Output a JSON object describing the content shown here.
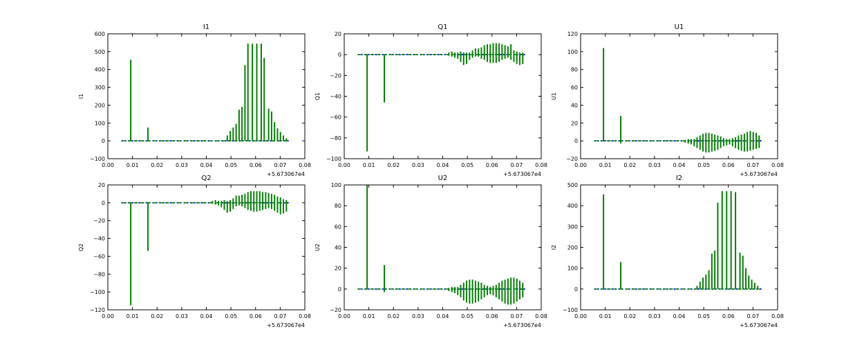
{
  "figure": {
    "background": "#ffffff",
    "spike_color": "#008000",
    "trace_color": "#0000ff"
  },
  "chart_data": [
    {
      "type": "line",
      "title": "I1",
      "ylabel": "I1",
      "xlim": [
        0.0,
        0.08
      ],
      "ylim": [
        -100,
        600
      ],
      "xticks": [
        "0.00",
        "0.01",
        "0.02",
        "0.03",
        "0.04",
        "0.05",
        "0.06",
        "0.07",
        "0.08"
      ],
      "yticks": [
        -100,
        0,
        100,
        200,
        300,
        400,
        500,
        600
      ],
      "x_offset": "+5.673067e4",
      "baseline": {
        "x": [
          0.0055,
          0.0735
        ],
        "y": 0
      },
      "spikes": [
        {
          "x": 0.0093,
          "ymin": 0,
          "ymax": 455
        },
        {
          "x": 0.0163,
          "ymin": 0,
          "ymax": 75
        },
        {
          "x": 0.0485,
          "ymin": 0,
          "ymax": 30
        },
        {
          "x": 0.0497,
          "ymin": 0,
          "ymax": 55
        },
        {
          "x": 0.0509,
          "ymin": 0,
          "ymax": 75
        },
        {
          "x": 0.0521,
          "ymin": 0,
          "ymax": 95
        },
        {
          "x": 0.0533,
          "ymin": 0,
          "ymax": 175
        },
        {
          "x": 0.0545,
          "ymin": 0,
          "ymax": 190
        },
        {
          "x": 0.0557,
          "ymin": 0,
          "ymax": 425
        },
        {
          "x": 0.0569,
          "ymin": 0,
          "ymax": 545
        },
        {
          "x": 0.0587,
          "ymin": 0,
          "ymax": 545
        },
        {
          "x": 0.0605,
          "ymin": 0,
          "ymax": 545
        },
        {
          "x": 0.0623,
          "ymin": 0,
          "ymax": 545
        },
        {
          "x": 0.0635,
          "ymin": 0,
          "ymax": 465
        },
        {
          "x": 0.0653,
          "ymin": 0,
          "ymax": 180
        },
        {
          "x": 0.0665,
          "ymin": 0,
          "ymax": 165
        },
        {
          "x": 0.0677,
          "ymin": 0,
          "ymax": 105
        },
        {
          "x": 0.0689,
          "ymin": 0,
          "ymax": 70
        },
        {
          "x": 0.0701,
          "ymin": 0,
          "ymax": 50
        },
        {
          "x": 0.0713,
          "ymin": 0,
          "ymax": 30
        },
        {
          "x": 0.0725,
          "ymin": 0,
          "ymax": 15
        }
      ]
    },
    {
      "type": "line",
      "title": "Q1",
      "ylabel": "Q1",
      "xlim": [
        0.0,
        0.08
      ],
      "ylim": [
        -100,
        20
      ],
      "xticks": [
        "0.00",
        "0.01",
        "0.02",
        "0.03",
        "0.04",
        "0.05",
        "0.06",
        "0.07",
        "0.08"
      ],
      "yticks": [
        -100,
        -80,
        -60,
        -40,
        -20,
        0,
        20
      ],
      "x_offset": "+5.673067e4",
      "baseline": {
        "x": [
          0.0055,
          0.0735
        ],
        "y": 0
      },
      "spikes": [
        {
          "x": 0.0093,
          "ymin": -93,
          "ymax": 0
        },
        {
          "x": 0.0163,
          "ymin": -46,
          "ymax": 0
        },
        {
          "x": 0.0425,
          "ymin": -1,
          "ymax": 2
        },
        {
          "x": 0.0437,
          "ymin": -2,
          "ymax": 3
        },
        {
          "x": 0.0449,
          "ymin": -3,
          "ymax": 2
        },
        {
          "x": 0.0461,
          "ymin": -4,
          "ymax": 2
        },
        {
          "x": 0.0473,
          "ymin": -7,
          "ymax": 3
        },
        {
          "x": 0.0485,
          "ymin": -10,
          "ymax": 2
        },
        {
          "x": 0.0497,
          "ymin": -9,
          "ymax": 2
        },
        {
          "x": 0.0509,
          "ymin": -5,
          "ymax": 2
        },
        {
          "x": 0.0521,
          "ymin": -3,
          "ymax": 4
        },
        {
          "x": 0.0533,
          "ymin": -2,
          "ymax": 6
        },
        {
          "x": 0.0545,
          "ymin": -2,
          "ymax": 6
        },
        {
          "x": 0.0557,
          "ymin": -4,
          "ymax": 7
        },
        {
          "x": 0.0569,
          "ymin": -5,
          "ymax": 9
        },
        {
          "x": 0.0581,
          "ymin": -7,
          "ymax": 10
        },
        {
          "x": 0.0593,
          "ymin": -8,
          "ymax": 10
        },
        {
          "x": 0.0605,
          "ymin": -8,
          "ymax": 11
        },
        {
          "x": 0.0617,
          "ymin": -8,
          "ymax": 11
        },
        {
          "x": 0.0629,
          "ymin": -7,
          "ymax": 11
        },
        {
          "x": 0.0641,
          "ymin": -5,
          "ymax": 10
        },
        {
          "x": 0.0653,
          "ymin": -4,
          "ymax": 9
        },
        {
          "x": 0.0665,
          "ymin": -3,
          "ymax": 8
        },
        {
          "x": 0.0677,
          "ymin": -5,
          "ymax": 10
        },
        {
          "x": 0.0689,
          "ymin": -7,
          "ymax": 4
        },
        {
          "x": 0.0701,
          "ymin": -9,
          "ymax": 3
        },
        {
          "x": 0.0713,
          "ymin": -10,
          "ymax": 2
        },
        {
          "x": 0.0725,
          "ymin": -9,
          "ymax": 2
        }
      ]
    },
    {
      "type": "line",
      "title": "U1",
      "ylabel": "U1",
      "xlim": [
        0.0,
        0.08
      ],
      "ylim": [
        -20,
        120
      ],
      "xticks": [
        "0.00",
        "0.01",
        "0.02",
        "0.03",
        "0.04",
        "0.05",
        "0.06",
        "0.07",
        "0.08"
      ],
      "yticks": [
        -20,
        0,
        20,
        40,
        60,
        80,
        100,
        120
      ],
      "x_offset": "+5.673067e4",
      "baseline": {
        "x": [
          0.0055,
          0.0735
        ],
        "y": 0
      },
      "spikes": [
        {
          "x": 0.0093,
          "ymin": 0,
          "ymax": 104
        },
        {
          "x": 0.0163,
          "ymin": -3,
          "ymax": 28
        },
        {
          "x": 0.0425,
          "ymin": -2,
          "ymax": 1
        },
        {
          "x": 0.0437,
          "ymin": -3,
          "ymax": 2
        },
        {
          "x": 0.0449,
          "ymin": -4,
          "ymax": 2
        },
        {
          "x": 0.0461,
          "ymin": -6,
          "ymax": 2
        },
        {
          "x": 0.0473,
          "ymin": -8,
          "ymax": 4
        },
        {
          "x": 0.0485,
          "ymin": -10,
          "ymax": 6
        },
        {
          "x": 0.0497,
          "ymin": -12,
          "ymax": 8
        },
        {
          "x": 0.0509,
          "ymin": -13,
          "ymax": 9
        },
        {
          "x": 0.0521,
          "ymin": -13,
          "ymax": 9
        },
        {
          "x": 0.0533,
          "ymin": -12,
          "ymax": 8
        },
        {
          "x": 0.0545,
          "ymin": -11,
          "ymax": 7
        },
        {
          "x": 0.0557,
          "ymin": -10,
          "ymax": 6
        },
        {
          "x": 0.0569,
          "ymin": -8,
          "ymax": 5
        },
        {
          "x": 0.0581,
          "ymin": -6,
          "ymax": 3
        },
        {
          "x": 0.0593,
          "ymin": -5,
          "ymax": 2
        },
        {
          "x": 0.0605,
          "ymin": -4,
          "ymax": 2
        },
        {
          "x": 0.0617,
          "ymin": -6,
          "ymax": 3
        },
        {
          "x": 0.0629,
          "ymin": -8,
          "ymax": 4
        },
        {
          "x": 0.0641,
          "ymin": -10,
          "ymax": 6
        },
        {
          "x": 0.0653,
          "ymin": -11,
          "ymax": 7
        },
        {
          "x": 0.0665,
          "ymin": -12,
          "ymax": 8
        },
        {
          "x": 0.0677,
          "ymin": -12,
          "ymax": 10
        },
        {
          "x": 0.0689,
          "ymin": -11,
          "ymax": 11
        },
        {
          "x": 0.0701,
          "ymin": -10,
          "ymax": 10
        },
        {
          "x": 0.0713,
          "ymin": -9,
          "ymax": 9
        },
        {
          "x": 0.0725,
          "ymin": -8,
          "ymax": 6
        }
      ]
    },
    {
      "type": "line",
      "title": "Q2",
      "ylabel": "Q2",
      "xlim": [
        0.0,
        0.08
      ],
      "ylim": [
        -120,
        20
      ],
      "xticks": [
        "0.00",
        "0.01",
        "0.02",
        "0.03",
        "0.04",
        "0.05",
        "0.06",
        "0.07",
        "0.08"
      ],
      "yticks": [
        -120,
        -100,
        -80,
        -60,
        -40,
        -20,
        0,
        20
      ],
      "x_offset": "+5.673067e4",
      "baseline": {
        "x": [
          0.0055,
          0.0735
        ],
        "y": 0
      },
      "spikes": [
        {
          "x": 0.0093,
          "ymin": -115,
          "ymax": 0
        },
        {
          "x": 0.0163,
          "ymin": -54,
          "ymax": 0
        },
        {
          "x": 0.0425,
          "ymin": -1,
          "ymax": 2
        },
        {
          "x": 0.0437,
          "ymin": -2,
          "ymax": 3
        },
        {
          "x": 0.0449,
          "ymin": -3,
          "ymax": 2
        },
        {
          "x": 0.0461,
          "ymin": -5,
          "ymax": 2
        },
        {
          "x": 0.0473,
          "ymin": -8,
          "ymax": 3
        },
        {
          "x": 0.0485,
          "ymin": -11,
          "ymax": 2
        },
        {
          "x": 0.0497,
          "ymin": -10,
          "ymax": 3
        },
        {
          "x": 0.0509,
          "ymin": -7,
          "ymax": 5
        },
        {
          "x": 0.0521,
          "ymin": -4,
          "ymax": 8
        },
        {
          "x": 0.0533,
          "ymin": -3,
          "ymax": 8
        },
        {
          "x": 0.0545,
          "ymin": -4,
          "ymax": 9
        },
        {
          "x": 0.0557,
          "ymin": -6,
          "ymax": 10
        },
        {
          "x": 0.0569,
          "ymin": -8,
          "ymax": 12
        },
        {
          "x": 0.0581,
          "ymin": -9,
          "ymax": 13
        },
        {
          "x": 0.0593,
          "ymin": -10,
          "ymax": 13
        },
        {
          "x": 0.0605,
          "ymin": -10,
          "ymax": 13
        },
        {
          "x": 0.0617,
          "ymin": -9,
          "ymax": 13
        },
        {
          "x": 0.0629,
          "ymin": -8,
          "ymax": 12
        },
        {
          "x": 0.0641,
          "ymin": -7,
          "ymax": 12
        },
        {
          "x": 0.0653,
          "ymin": -6,
          "ymax": 11
        },
        {
          "x": 0.0665,
          "ymin": -7,
          "ymax": 10
        },
        {
          "x": 0.0677,
          "ymin": -9,
          "ymax": 9
        },
        {
          "x": 0.0689,
          "ymin": -11,
          "ymax": 7
        },
        {
          "x": 0.0701,
          "ymin": -13,
          "ymax": 6
        },
        {
          "x": 0.0713,
          "ymin": -12,
          "ymax": 4
        },
        {
          "x": 0.0725,
          "ymin": -10,
          "ymax": 3
        }
      ]
    },
    {
      "type": "line",
      "title": "U2",
      "ylabel": "U2",
      "xlim": [
        0.0,
        0.08
      ],
      "ylim": [
        -20,
        100
      ],
      "xticks": [
        "0.00",
        "0.01",
        "0.02",
        "0.03",
        "0.04",
        "0.05",
        "0.06",
        "0.07",
        "0.08"
      ],
      "yticks": [
        -20,
        0,
        20,
        40,
        60,
        80,
        100
      ],
      "x_offset": "+5.673067e4",
      "baseline": {
        "x": [
          0.0055,
          0.0735
        ],
        "y": 0
      },
      "spikes": [
        {
          "x": 0.0093,
          "ymin": 0,
          "ymax": 100
        },
        {
          "x": 0.0163,
          "ymin": -3,
          "ymax": 23
        },
        {
          "x": 0.0425,
          "ymin": -2,
          "ymax": 1
        },
        {
          "x": 0.0437,
          "ymin": -3,
          "ymax": 2
        },
        {
          "x": 0.0449,
          "ymin": -4,
          "ymax": 2
        },
        {
          "x": 0.0461,
          "ymin": -6,
          "ymax": 2
        },
        {
          "x": 0.0473,
          "ymin": -8,
          "ymax": 4
        },
        {
          "x": 0.0485,
          "ymin": -11,
          "ymax": 6
        },
        {
          "x": 0.0497,
          "ymin": -13,
          "ymax": 8
        },
        {
          "x": 0.0509,
          "ymin": -14,
          "ymax": 9
        },
        {
          "x": 0.0521,
          "ymin": -14,
          "ymax": 9
        },
        {
          "x": 0.0533,
          "ymin": -13,
          "ymax": 8
        },
        {
          "x": 0.0545,
          "ymin": -12,
          "ymax": 7
        },
        {
          "x": 0.0557,
          "ymin": -10,
          "ymax": 6
        },
        {
          "x": 0.0569,
          "ymin": -8,
          "ymax": 4
        },
        {
          "x": 0.0581,
          "ymin": -6,
          "ymax": 3
        },
        {
          "x": 0.0593,
          "ymin": -5,
          "ymax": 2
        },
        {
          "x": 0.0605,
          "ymin": -6,
          "ymax": 3
        },
        {
          "x": 0.0617,
          "ymin": -8,
          "ymax": 4
        },
        {
          "x": 0.0629,
          "ymin": -10,
          "ymax": 6
        },
        {
          "x": 0.0641,
          "ymin": -12,
          "ymax": 8
        },
        {
          "x": 0.0653,
          "ymin": -14,
          "ymax": 9
        },
        {
          "x": 0.0665,
          "ymin": -15,
          "ymax": 10
        },
        {
          "x": 0.0677,
          "ymin": -15,
          "ymax": 11
        },
        {
          "x": 0.0689,
          "ymin": -14,
          "ymax": 11
        },
        {
          "x": 0.0701,
          "ymin": -12,
          "ymax": 10
        },
        {
          "x": 0.0713,
          "ymin": -10,
          "ymax": 8
        },
        {
          "x": 0.0725,
          "ymin": -8,
          "ymax": 6
        }
      ]
    },
    {
      "type": "line",
      "title": "I2",
      "ylabel": "I2",
      "xlim": [
        0.0,
        0.08
      ],
      "ylim": [
        -100,
        500
      ],
      "xticks": [
        "0.00",
        "0.01",
        "0.02",
        "0.03",
        "0.04",
        "0.05",
        "0.06",
        "0.07",
        "0.08"
      ],
      "yticks": [
        -100,
        0,
        100,
        200,
        300,
        400,
        500
      ],
      "x_offset": "+5.673067e4",
      "baseline": {
        "x": [
          0.0055,
          0.0735
        ],
        "y": 0
      },
      "spikes": [
        {
          "x": 0.0093,
          "ymin": 0,
          "ymax": 455
        },
        {
          "x": 0.0163,
          "ymin": 0,
          "ymax": 130
        },
        {
          "x": 0.0473,
          "ymin": 0,
          "ymax": 15
        },
        {
          "x": 0.0485,
          "ymin": 0,
          "ymax": 35
        },
        {
          "x": 0.0497,
          "ymin": 0,
          "ymax": 55
        },
        {
          "x": 0.0509,
          "ymin": 0,
          "ymax": 70
        },
        {
          "x": 0.0521,
          "ymin": 0,
          "ymax": 90
        },
        {
          "x": 0.0533,
          "ymin": 0,
          "ymax": 170
        },
        {
          "x": 0.0545,
          "ymin": 0,
          "ymax": 185
        },
        {
          "x": 0.0557,
          "ymin": 0,
          "ymax": 415
        },
        {
          "x": 0.0575,
          "ymin": 0,
          "ymax": 470
        },
        {
          "x": 0.0593,
          "ymin": 0,
          "ymax": 470
        },
        {
          "x": 0.0611,
          "ymin": 0,
          "ymax": 470
        },
        {
          "x": 0.0629,
          "ymin": 0,
          "ymax": 465
        },
        {
          "x": 0.0647,
          "ymin": 0,
          "ymax": 175
        },
        {
          "x": 0.0659,
          "ymin": 0,
          "ymax": 160
        },
        {
          "x": 0.0671,
          "ymin": 0,
          "ymax": 100
        },
        {
          "x": 0.0683,
          "ymin": 0,
          "ymax": 65
        },
        {
          "x": 0.0695,
          "ymin": 0,
          "ymax": 45
        },
        {
          "x": 0.0707,
          "ymin": 0,
          "ymax": 30
        },
        {
          "x": 0.0719,
          "ymin": 0,
          "ymax": 15
        }
      ]
    }
  ]
}
